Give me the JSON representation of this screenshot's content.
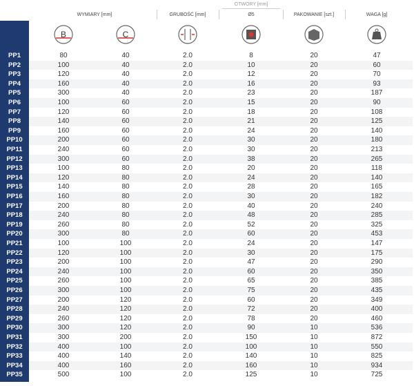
{
  "header": {
    "dimensions": "WYMIARY [mm]",
    "thickness": "GRUBOŚĆ [mm]",
    "holes": "OTWORY [mm]",
    "hole_size": "Ø5",
    "packaging": "PAKOWANIE [szt.]",
    "weight": "WAGA [g]",
    "icon_b": "B",
    "icon_c": "C"
  },
  "table": {
    "rows": [
      [
        "PP1",
        "80",
        "40",
        "2.0",
        "8",
        "20",
        "47"
      ],
      [
        "PP2",
        "100",
        "40",
        "2.0",
        "10",
        "20",
        "60"
      ],
      [
        "PP3",
        "120",
        "40",
        "2.0",
        "12",
        "20",
        "70"
      ],
      [
        "PP4",
        "160",
        "40",
        "2.0",
        "16",
        "20",
        "93"
      ],
      [
        "PP5",
        "300",
        "40",
        "2.0",
        "23",
        "20",
        "187"
      ],
      [
        "PP6",
        "100",
        "60",
        "2.0",
        "15",
        "20",
        "90"
      ],
      [
        "PP7",
        "120",
        "60",
        "2.0",
        "18",
        "20",
        "108"
      ],
      [
        "PP8",
        "140",
        "60",
        "2.0",
        "21",
        "20",
        "125"
      ],
      [
        "PP9",
        "160",
        "60",
        "2.0",
        "24",
        "20",
        "140"
      ],
      [
        "PP10",
        "200",
        "60",
        "2.0",
        "30",
        "20",
        "180"
      ],
      [
        "PP11",
        "240",
        "60",
        "2.0",
        "30",
        "20",
        "213"
      ],
      [
        "PP12",
        "300",
        "60",
        "2.0",
        "38",
        "20",
        "265"
      ],
      [
        "PP13",
        "100",
        "80",
        "2.0",
        "20",
        "20",
        "118"
      ],
      [
        "PP14",
        "120",
        "80",
        "2.0",
        "24",
        "20",
        "140"
      ],
      [
        "PP15",
        "140",
        "80",
        "2.0",
        "28",
        "20",
        "165"
      ],
      [
        "PP16",
        "160",
        "80",
        "2.0",
        "30",
        "20",
        "182"
      ],
      [
        "PP17",
        "200",
        "80",
        "2.0",
        "40",
        "20",
        "240"
      ],
      [
        "PP18",
        "240",
        "80",
        "2.0",
        "48",
        "20",
        "285"
      ],
      [
        "PP19",
        "260",
        "80",
        "2.0",
        "52",
        "20",
        "325"
      ],
      [
        "PP20",
        "300",
        "80",
        "2.0",
        "60",
        "20",
        "453"
      ],
      [
        "PP21",
        "100",
        "100",
        "2.0",
        "24",
        "20",
        "147"
      ],
      [
        "PP22",
        "120",
        "100",
        "2.0",
        "30",
        "20",
        "175"
      ],
      [
        "PP23",
        "200",
        "100",
        "2.0",
        "47",
        "20",
        "290"
      ],
      [
        "PP24",
        "240",
        "100",
        "2.0",
        "60",
        "20",
        "350"
      ],
      [
        "PP25",
        "260",
        "100",
        "2.0",
        "65",
        "20",
        "385"
      ],
      [
        "PP26",
        "300",
        "100",
        "2.0",
        "75",
        "20",
        "435"
      ],
      [
        "PP27",
        "200",
        "120",
        "2.0",
        "60",
        "20",
        "349"
      ],
      [
        "PP28",
        "240",
        "120",
        "2.0",
        "72",
        "20",
        "400"
      ],
      [
        "PP29",
        "260",
        "120",
        "2.0",
        "78",
        "20",
        "460"
      ],
      [
        "PP30",
        "300",
        "120",
        "2.0",
        "90",
        "10",
        "536"
      ],
      [
        "PP31",
        "300",
        "200",
        "2.0",
        "150",
        "10",
        "872"
      ],
      [
        "PP32",
        "400",
        "100",
        "2.0",
        "100",
        "10",
        "550"
      ],
      [
        "PP33",
        "400",
        "140",
        "2.0",
        "140",
        "10",
        "825"
      ],
      [
        "PP34",
        "400",
        "160",
        "2.0",
        "160",
        "10",
        "934"
      ],
      [
        "PP35",
        "500",
        "100",
        "2.0",
        "125",
        "10",
        "725"
      ]
    ]
  }
}
